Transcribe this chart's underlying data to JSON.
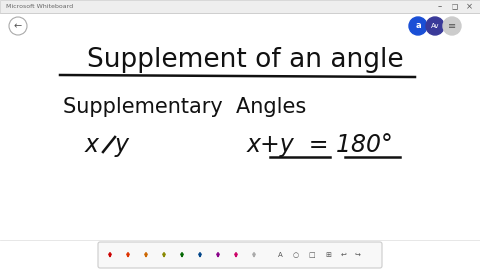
{
  "background_color": "#ffffff",
  "title_text": "Supplement of an angle",
  "title_fontsize": 19,
  "line1_text": "Supplementary  Angles",
  "line1_fontsize": 15,
  "line2a_fontsize": 17,
  "line2b_text": "x+y = 180°",
  "line2b_fontsize": 17,
  "text_color": "#111111",
  "header_color": "#eeeeee",
  "circle1_color": "#1a4fd6",
  "circle2_color": "#3a3a99",
  "circle3_color": "#cccccc",
  "toolbar_pencil_colors": [
    "#cc0000",
    "#dd3300",
    "#cc6600",
    "#888800",
    "#006600",
    "#004488",
    "#880088",
    "#cc0066",
    "#aaaaaa"
  ],
  "win_controls_color": "#888888"
}
